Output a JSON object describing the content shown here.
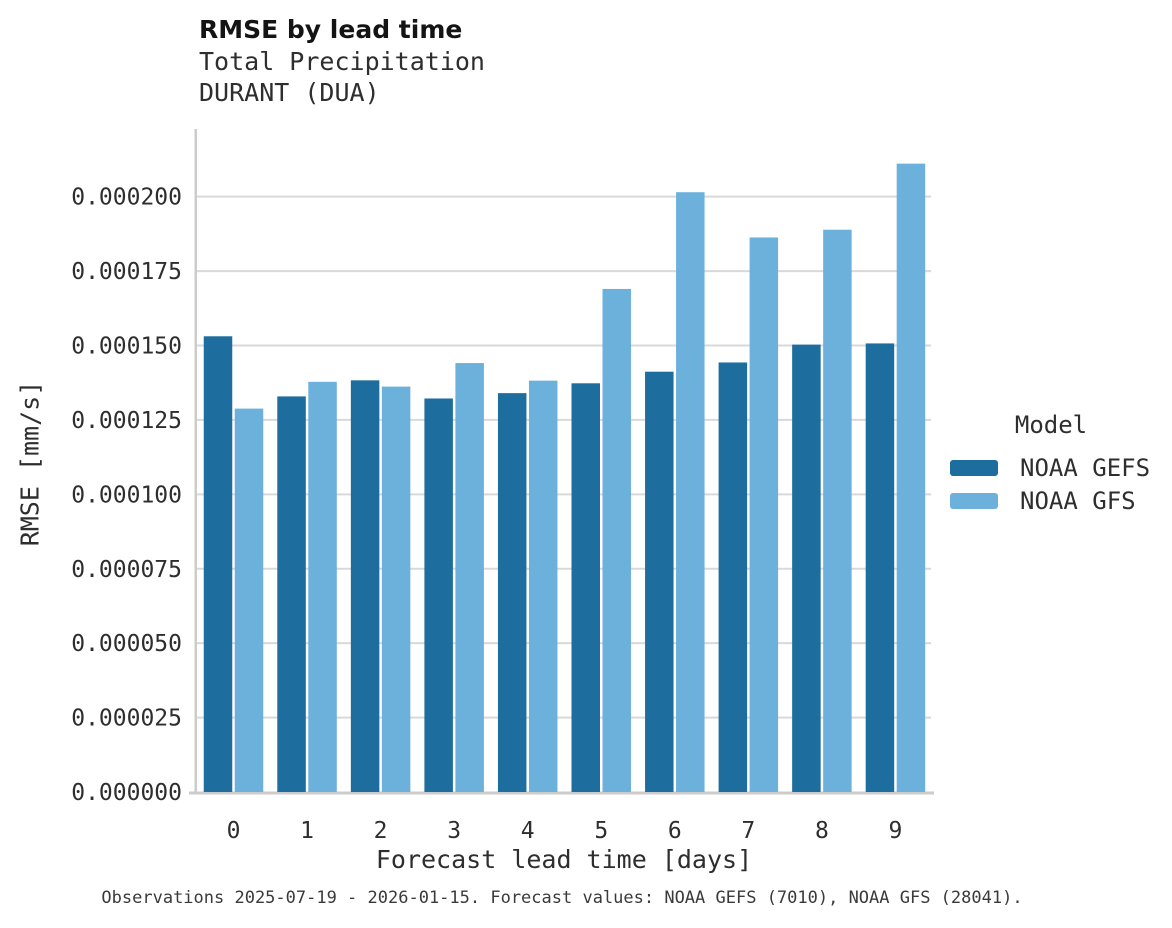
{
  "header": {
    "title": "RMSE by lead time",
    "subtitle": "Total Precipitation",
    "station": "DURANT (DUA)"
  },
  "legend": {
    "title": "Model"
  },
  "footer": {
    "caption": "Observations 2025-07-19 - 2026-01-15. Forecast values: NOAA GEFS (7010), NOAA GFS (28041)."
  },
  "colors": {
    "gefs": "#1d6d9e",
    "gfs": "#6cb0dc",
    "grid": "#d9d9d9",
    "spine": "#cccccc"
  },
  "chart_data": {
    "type": "bar",
    "title": "RMSE by lead time",
    "subtitle": "Total Precipitation",
    "annotation": "DURANT (DUA)",
    "categories": [
      "0",
      "1",
      "2",
      "3",
      "4",
      "5",
      "6",
      "7",
      "8",
      "9"
    ],
    "series": [
      {
        "name": "NOAA GEFS",
        "color": "#1d6d9e",
        "values": [
          0.0001531,
          0.0001329,
          0.0001383,
          0.0001322,
          0.000134,
          0.0001373,
          0.0001412,
          0.0001443,
          0.0001503,
          0.0001507
        ]
      },
      {
        "name": "NOAA GFS",
        "color": "#6cb0dc",
        "values": [
          0.0001288,
          0.0001378,
          0.0001362,
          0.0001441,
          0.0001382,
          0.000169,
          0.0002015,
          0.0001863,
          0.0001889,
          0.0002111
        ]
      }
    ],
    "xlabel": "Forecast lead time [days]",
    "ylabel": "RMSE [mm/s]",
    "ylim": [
      0,
      0.0002224
    ],
    "yticks": [
      "0.000000",
      "0.000025",
      "0.000050",
      "0.000075",
      "0.000100",
      "0.000125",
      "0.000150",
      "0.000175",
      "0.000200"
    ],
    "grid": "horizontal",
    "legend_position": "right",
    "legend_title": "Model"
  }
}
